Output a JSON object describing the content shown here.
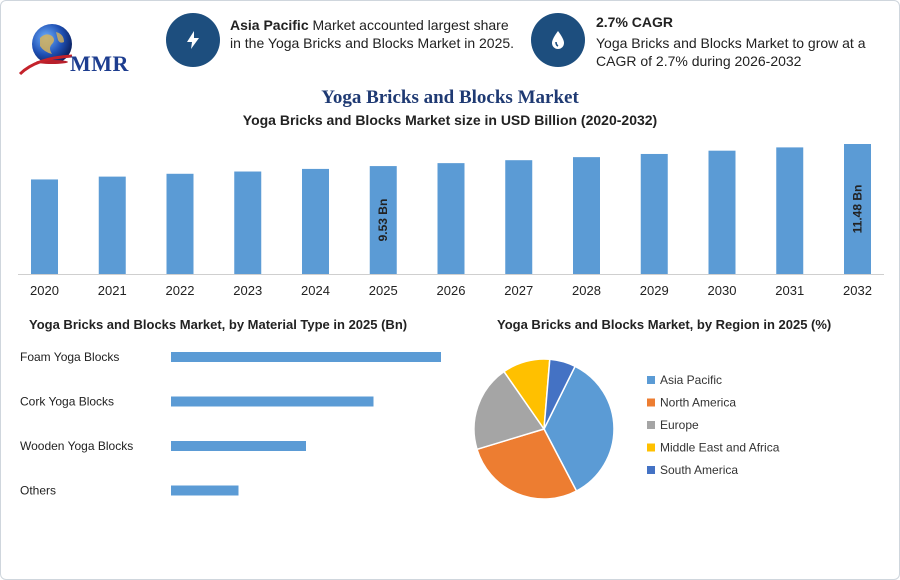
{
  "header": {
    "logo_text": "MMR",
    "info1": {
      "bold": "Asia Pacific",
      "text": " Market accounted largest share in the Yoga Bricks and Blocks Market in 2025."
    },
    "info2": {
      "title": "2.7% CAGR",
      "text": "Yoga Bricks and Blocks Market to grow at a CAGR of 2.7% during 2026-2032"
    }
  },
  "titles": {
    "main": "Yoga Bricks and Blocks Market",
    "sub": "Yoga Bricks and Blocks Market size in USD Billion (2020-2032)",
    "material": "Yoga Bricks and Blocks Market, by Material Type in 2025 (Bn)",
    "region": "Yoga Bricks and Blocks Market, by Region in 2025 (%)"
  },
  "colors": {
    "bar": "#5b9bd5",
    "dark_blue": "#1d4e7e",
    "title_blue": "#1f3a73"
  },
  "chart_data": [
    {
      "type": "bar",
      "title": "Yoga Bricks and Blocks Market size in USD Billion (2020-2032)",
      "categories": [
        "2020",
        "2021",
        "2022",
        "2023",
        "2024",
        "2025",
        "2026",
        "2027",
        "2028",
        "2029",
        "2030",
        "2031",
        "2032"
      ],
      "values": [
        8.35,
        8.6,
        8.85,
        9.05,
        9.28,
        9.53,
        9.79,
        10.05,
        10.32,
        10.6,
        10.89,
        11.18,
        11.48
      ],
      "data_labels": {
        "5": "9.53 Bn",
        "12": "11.48 Bn"
      },
      "ylim": [
        0,
        11.48
      ],
      "xlabel": "",
      "ylabel": ""
    },
    {
      "type": "bar",
      "orientation": "horizontal",
      "title": "Yoga Bricks and Blocks Market, by Material Type in 2025 (Bn)",
      "categories": [
        "Foam Yoga Blocks",
        "Cork Yoga Blocks",
        "Wooden Yoga Blocks",
        "Others"
      ],
      "values": [
        4.0,
        3.0,
        2.0,
        1.0
      ],
      "xlim": [
        0,
        4.0
      ]
    },
    {
      "type": "pie",
      "title": "Yoga Bricks and Blocks Market, by Region in 2025 (%)",
      "categories": [
        "Asia Pacific",
        "North America",
        "Europe",
        "Middle East and Africa",
        "South America"
      ],
      "values": [
        35,
        28,
        20,
        11,
        6
      ],
      "colors": [
        "#5b9bd5",
        "#ed7d31",
        "#a5a5a5",
        "#ffc000",
        "#4472c4"
      ],
      "legend": "right"
    }
  ]
}
